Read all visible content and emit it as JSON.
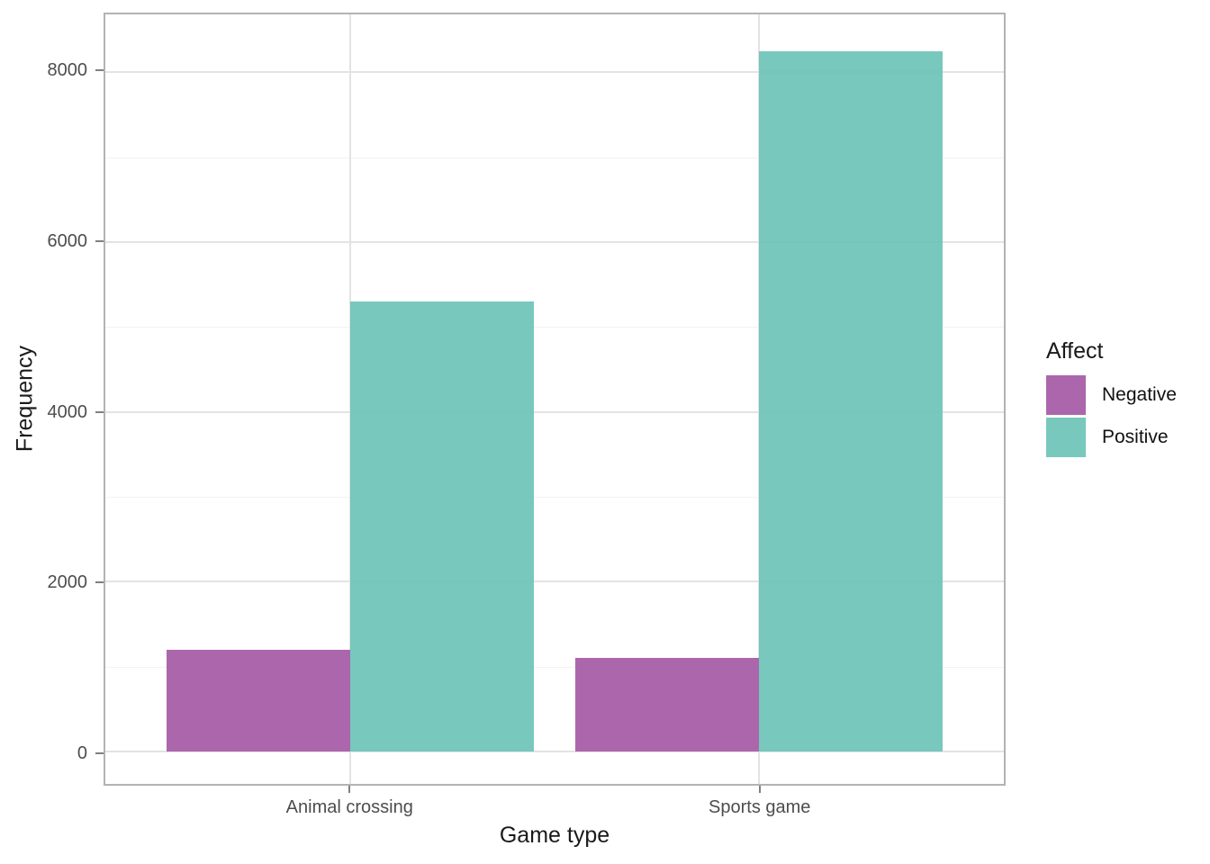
{
  "chart_data": {
    "type": "bar",
    "title": "",
    "xlabel": "Game type",
    "ylabel": "Frequency",
    "categories": [
      "Animal crossing",
      "Sports game"
    ],
    "series": [
      {
        "name": "Negative",
        "color": "#A356A3",
        "values": [
          1200,
          1100
        ]
      },
      {
        "name": "Positive",
        "color": "#69C2B7",
        "values": [
          5300,
          8250
        ]
      }
    ],
    "bar_opacity": 0.9,
    "grid": true,
    "legend": {
      "title": "Affect",
      "position": "right",
      "entries": [
        "Negative",
        "Positive"
      ]
    },
    "y_axis": {
      "ticks": [
        0,
        2000,
        4000,
        6000,
        8000
      ],
      "tick_labels": [
        "0",
        "2000",
        "4000",
        "6000",
        "8000"
      ],
      "minor_ticks": [
        1000,
        3000,
        5000,
        7000
      ],
      "range_rendered": [
        -380,
        8680
      ]
    },
    "x_axis": {
      "category_centers_pct": [
        27.273,
        72.727
      ],
      "bar_width_pct": 20.455
    },
    "style": {
      "background": "#ffffff",
      "panel_border": "#b3b3b3",
      "grid_major": "#e3e3e3",
      "grid_minor": "#f2f2f2",
      "tick_color": "#7f7f7f",
      "tick_label_color": "#4d4d4d",
      "axis_title_color": "#1a1a1a"
    }
  }
}
